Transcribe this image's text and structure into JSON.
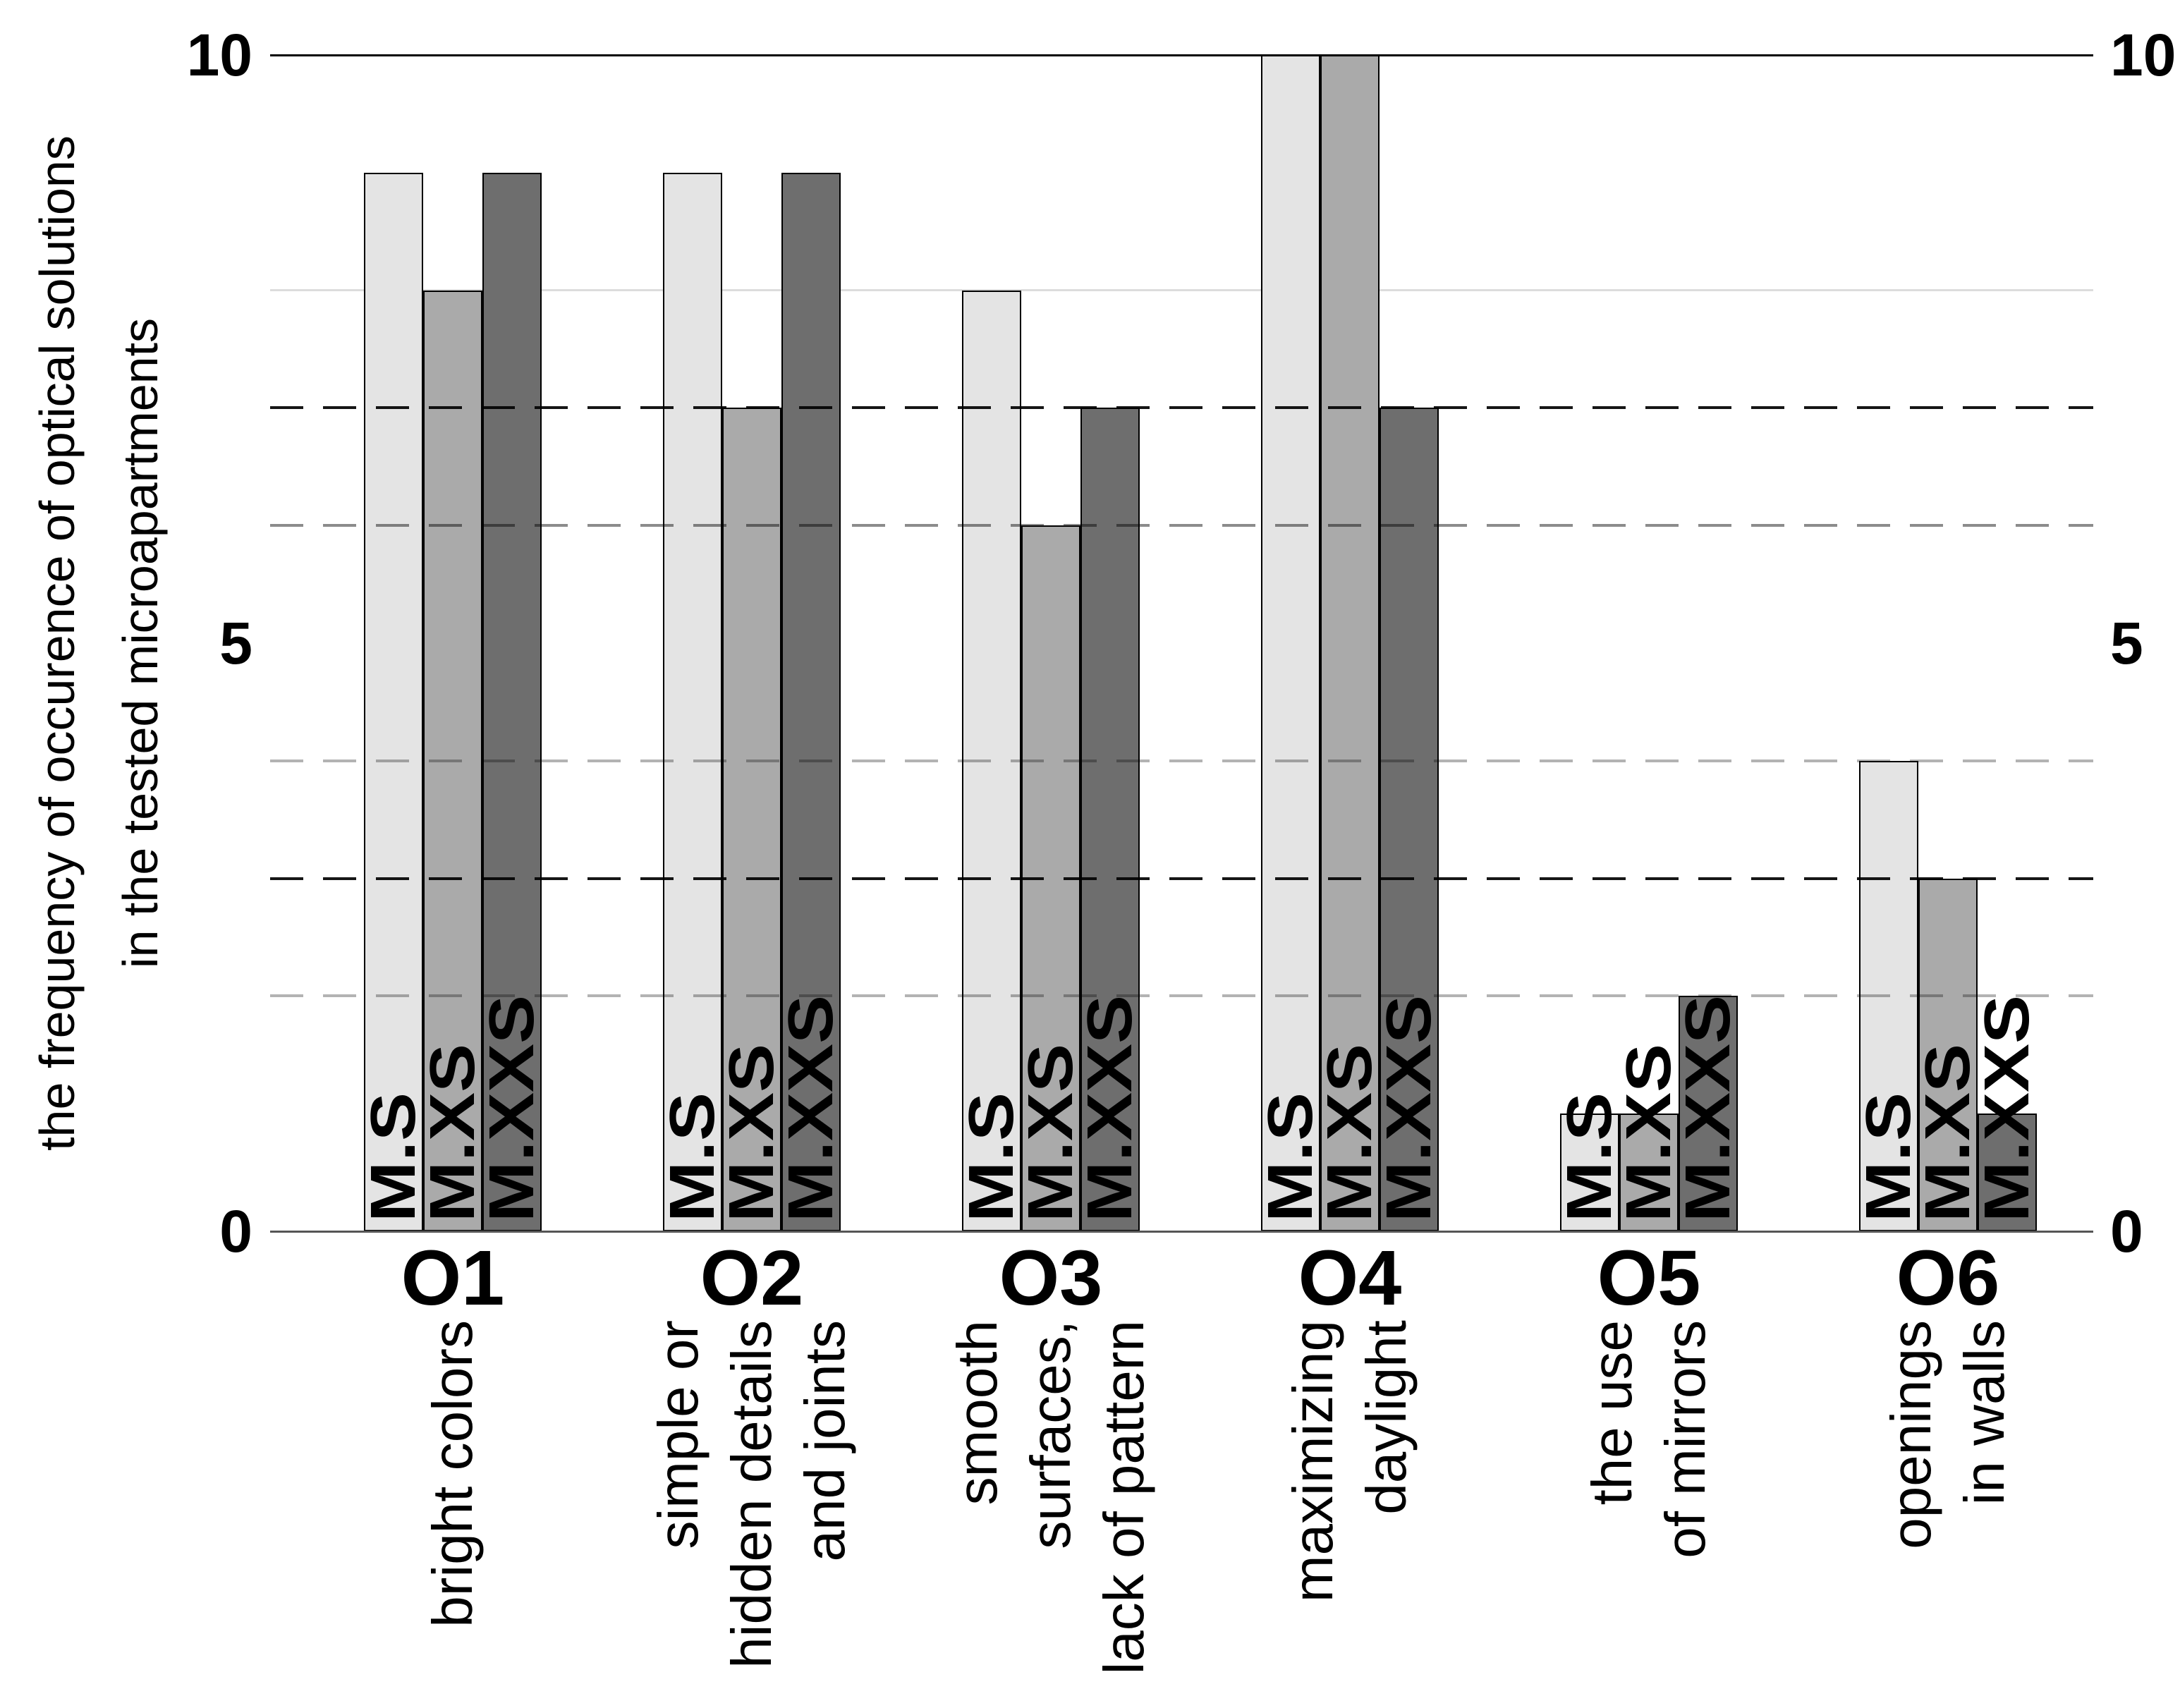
{
  "chart_data": {
    "type": "bar",
    "title": "",
    "ylabel_lines": [
      "the frequency of occurence of optical solutions",
      "in the tested microapartments"
    ],
    "ylim": [
      0,
      10
    ],
    "yticks": [
      {
        "value": 10,
        "label": "10"
      },
      {
        "value": 5,
        "label": "5"
      },
      {
        "value": 0,
        "label": "0"
      }
    ],
    "yticks_shown_on": "both-sides",
    "legend_position": "labels-inside-bars",
    "grid": "horizontal dashed",
    "gridlines": [
      {
        "value": 8,
        "style": "solid",
        "color": "#dcdcdc"
      },
      {
        "value": 7,
        "style": "dashed",
        "color": "#161616"
      },
      {
        "value": 6,
        "style": "dashed",
        "color": "#8c8c8c"
      },
      {
        "value": 4,
        "style": "dashed",
        "color": "#b3b3b3"
      },
      {
        "value": 3,
        "style": "dashed",
        "color": "#161616"
      },
      {
        "value": 2,
        "style": "dashed",
        "color": "#b3b3b3"
      }
    ],
    "axis_colors": {
      "top_line": "#000000",
      "base_line": "#555555"
    },
    "categories": [
      "O1",
      "O2",
      "O3",
      "O4",
      "O5",
      "O6"
    ],
    "category_descriptions": [
      [
        "bright colors"
      ],
      [
        "simple or",
        "hidden details",
        "and joints"
      ],
      [
        "smooth",
        "surfaces,",
        "lack of pattern"
      ],
      [
        "maximizing",
        "daylight"
      ],
      [
        "the use",
        "of mirrors"
      ],
      [
        "openings",
        "in walls"
      ]
    ],
    "series": [
      {
        "name": "M.S",
        "color": "#e4e4e4",
        "values": [
          9,
          9,
          8,
          10,
          1,
          4
        ]
      },
      {
        "name": "M.XS",
        "color": "#aaaaaa",
        "values": [
          8,
          7,
          6,
          10,
          1,
          3
        ]
      },
      {
        "name": "M.XXS",
        "color": "#6e6e6e",
        "values": [
          9,
          9,
          7,
          7,
          2,
          1
        ]
      }
    ]
  }
}
